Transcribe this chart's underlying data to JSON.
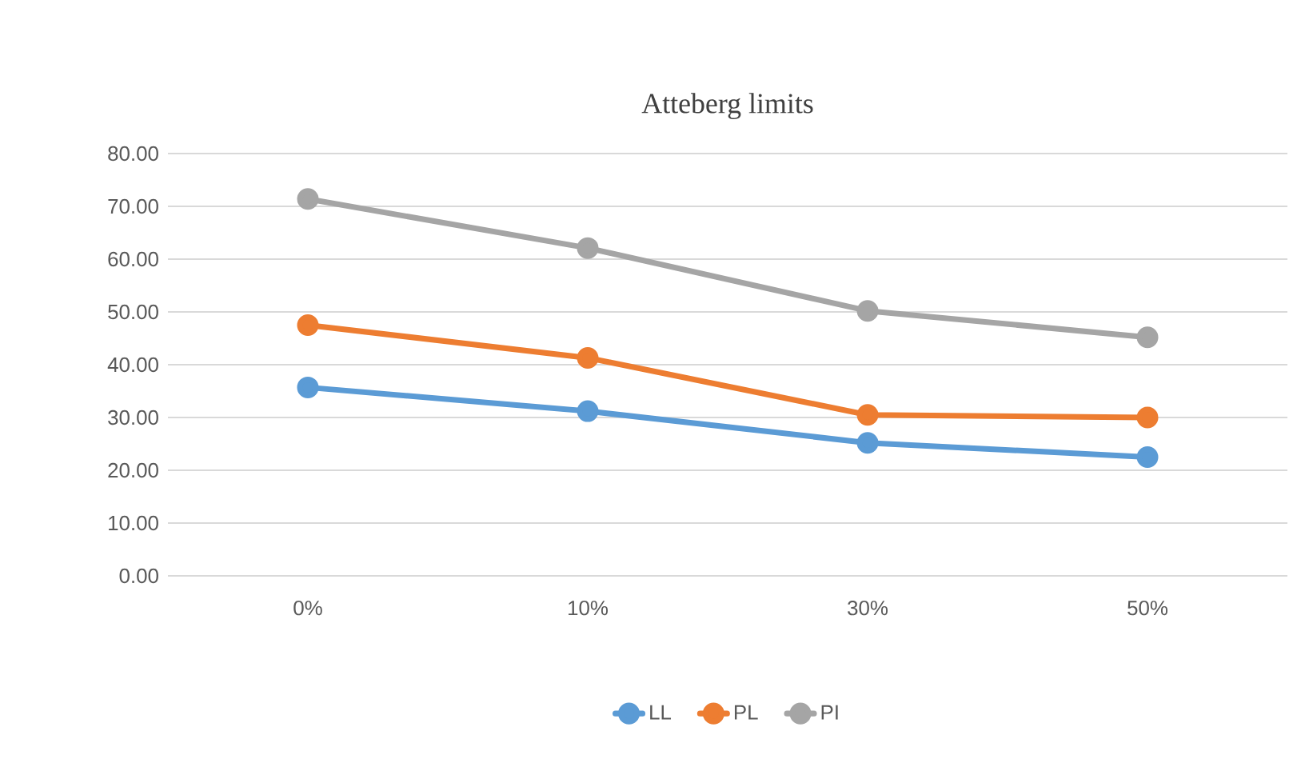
{
  "chart_data": {
    "type": "line",
    "title": "Atteberg limits",
    "categories": [
      "0%",
      "10%",
      "30%",
      "50%"
    ],
    "series": [
      {
        "name": "LL",
        "color": "#5b9bd5",
        "values": [
          35.7,
          31.2,
          25.2,
          22.5
        ]
      },
      {
        "name": "PL",
        "color": "#ed7d31",
        "values": [
          47.5,
          41.3,
          30.5,
          30.0
        ]
      },
      {
        "name": "PI",
        "color": "#a5a5a5",
        "values": [
          71.4,
          62.1,
          50.2,
          45.2
        ]
      }
    ],
    "ylim": [
      0,
      80
    ],
    "yticks": [
      {
        "value": 0,
        "label": "0.00"
      },
      {
        "value": 10,
        "label": "10.00"
      },
      {
        "value": 20,
        "label": "20.00"
      },
      {
        "value": 30,
        "label": "30.00"
      },
      {
        "value": 40,
        "label": "40.00"
      },
      {
        "value": 50,
        "label": "50.00"
      },
      {
        "value": 60,
        "label": "60.00"
      },
      {
        "value": 70,
        "label": "70.00"
      },
      {
        "value": 80,
        "label": "80.00"
      }
    ],
    "grid": "y",
    "legend": "bottom",
    "marker": "circle",
    "line_style": "solid"
  }
}
